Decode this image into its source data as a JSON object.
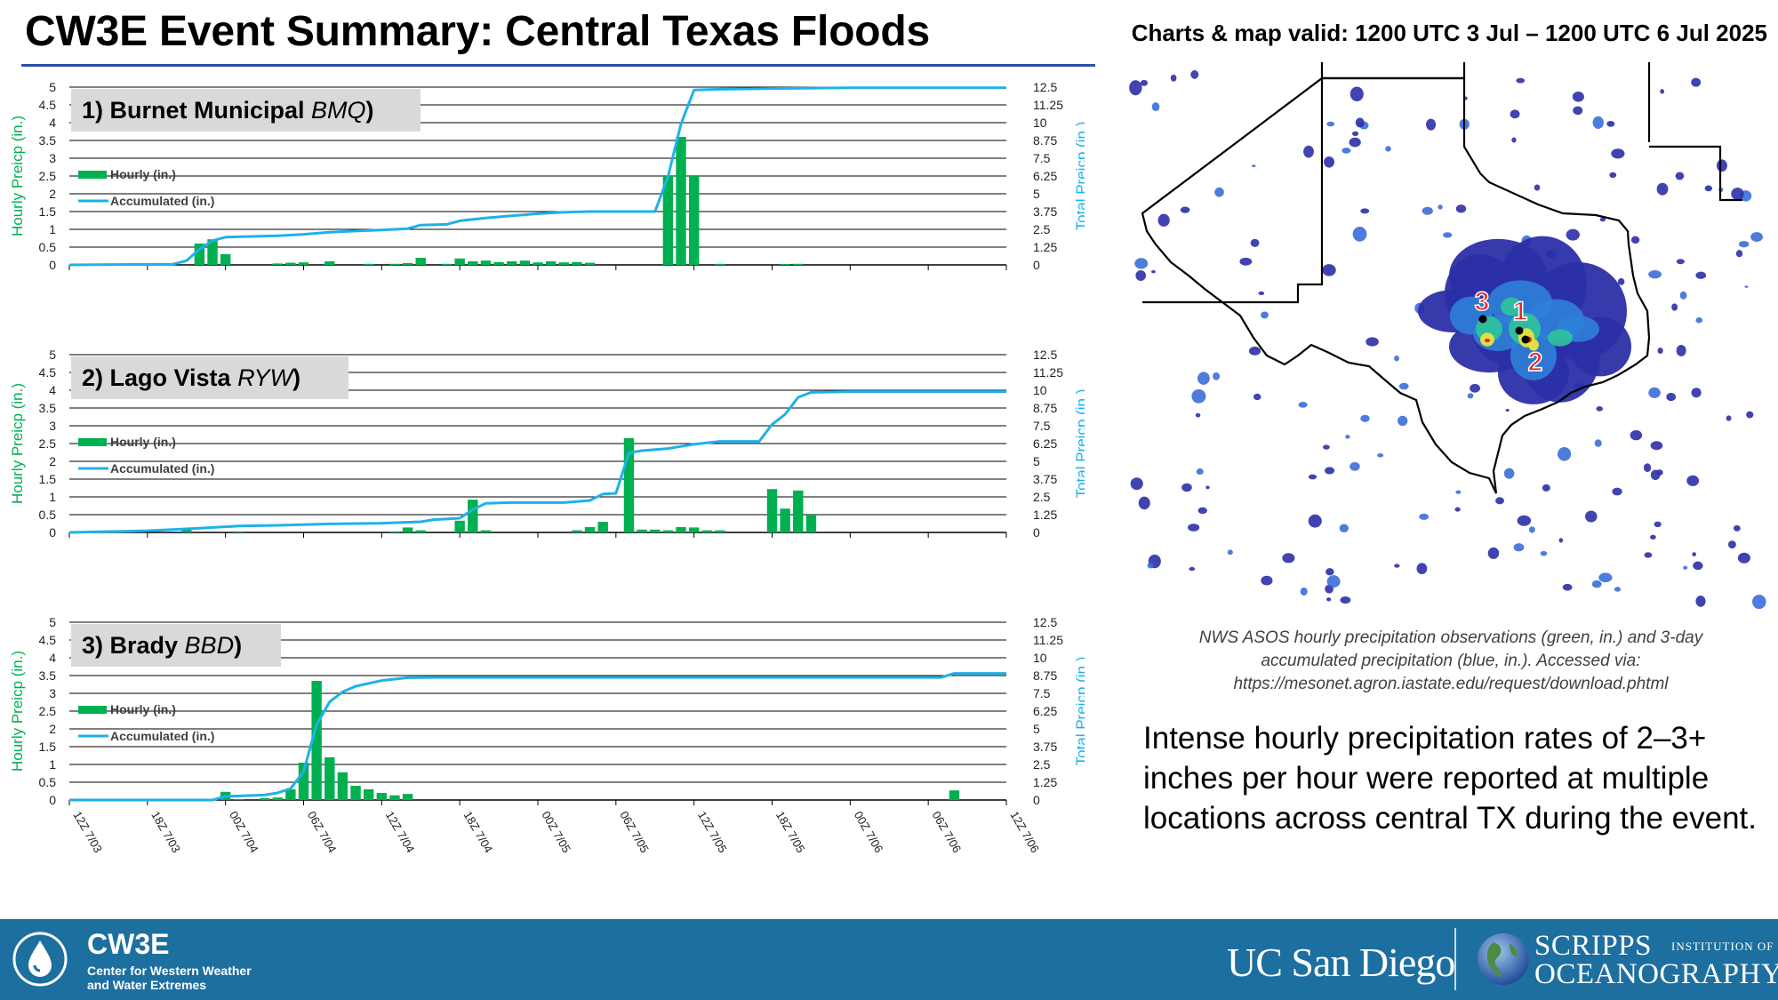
{
  "header": {
    "title": "CW3E Event Summary: Central Texas Floods",
    "valid": "Charts & map valid: 1200 UTC 3 Jul – 1200 UTC 6 Jul 2025"
  },
  "colors": {
    "hourly": "#00b050",
    "accumulated": "#1fb1e9",
    "title_rule": "#2b4fa8",
    "footer": "#1d6fa0",
    "marker_label": "#e3262b"
  },
  "chart_data": [
    {
      "type": "bar",
      "title": "1) Burnet Municipal ",
      "title_code": "BMQ",
      "title_suffix": ")",
      "x_tick_labels": [
        "12Z 7/03",
        "18Z 7/03",
        "00Z 7/04",
        "06Z 7/04",
        "12Z 7/04",
        "18Z 7/04",
        "00Z 7/05",
        "06Z 7/05",
        "12Z 7/05",
        "18Z 7/05",
        "00Z 7/06",
        "06Z 7/06",
        "12Z 7/06"
      ],
      "ylabel_left": "Hourly Preicp (in.)",
      "ylabel_right": "Total Preicp (in.)",
      "ylim_left": [
        0,
        5
      ],
      "ylim_right": [
        0,
        12.5
      ],
      "left_ticks": [
        "0",
        "0.5",
        "1",
        "1.5",
        "2",
        "2.5",
        "3",
        "3.5",
        "4",
        "4.5",
        "5"
      ],
      "right_ticks": [
        "0",
        "1.25",
        "2.5",
        "3.75",
        "5",
        "6.25",
        "7.5",
        "8.75",
        "10",
        "11.25",
        "12.5"
      ],
      "legend": {
        "hourly": "Hourly (in.)",
        "accumulated": "Accumulated (in.)"
      },
      "hourly": [
        {
          "h": 10,
          "v": 0.6
        },
        {
          "h": 11,
          "v": 0.72
        },
        {
          "h": 12,
          "v": 0.3
        },
        {
          "h": 16,
          "v": 0.04
        },
        {
          "h": 17,
          "v": 0.06
        },
        {
          "h": 18,
          "v": 0.07
        },
        {
          "h": 20,
          "v": 0.1
        },
        {
          "h": 23,
          "v": 0.03
        },
        {
          "h": 25,
          "v": 0.03
        },
        {
          "h": 26,
          "v": 0.05
        },
        {
          "h": 27,
          "v": 0.2
        },
        {
          "h": 29,
          "v": 0.03
        },
        {
          "h": 30,
          "v": 0.18
        },
        {
          "h": 31,
          "v": 0.1
        },
        {
          "h": 32,
          "v": 0.12
        },
        {
          "h": 33,
          "v": 0.08
        },
        {
          "h": 34,
          "v": 0.1
        },
        {
          "h": 35,
          "v": 0.12
        },
        {
          "h": 36,
          "v": 0.07
        },
        {
          "h": 37,
          "v": 0.1
        },
        {
          "h": 38,
          "v": 0.07
        },
        {
          "h": 39,
          "v": 0.08
        },
        {
          "h": 40,
          "v": 0.06
        },
        {
          "h": 46,
          "v": 2.5
        },
        {
          "h": 47,
          "v": 3.6
        },
        {
          "h": 48,
          "v": 2.5
        },
        {
          "h": 50,
          "v": 0.03
        },
        {
          "h": 55,
          "v": 0.02
        },
        {
          "h": 56,
          "v": 0.03
        }
      ],
      "accumulated": [
        [
          0,
          0
        ],
        [
          8,
          0.05
        ],
        [
          9,
          0.3
        ],
        [
          10,
          1.1
        ],
        [
          11,
          1.7
        ],
        [
          12,
          1.95
        ],
        [
          14,
          2.0
        ],
        [
          16,
          2.05
        ],
        [
          18,
          2.15
        ],
        [
          20,
          2.3
        ],
        [
          22,
          2.38
        ],
        [
          24,
          2.45
        ],
        [
          26,
          2.55
        ],
        [
          27,
          2.8
        ],
        [
          29,
          2.85
        ],
        [
          30,
          3.1
        ],
        [
          32,
          3.3
        ],
        [
          34,
          3.45
        ],
        [
          36,
          3.6
        ],
        [
          38,
          3.7
        ],
        [
          40,
          3.75
        ],
        [
          43,
          3.75
        ],
        [
          45,
          3.75
        ],
        [
          46,
          6.2
        ],
        [
          47,
          9.9
        ],
        [
          48,
          12.3
        ],
        [
          50,
          12.35
        ],
        [
          54,
          12.4
        ],
        [
          60,
          12.45
        ],
        [
          72,
          12.45
        ]
      ]
    },
    {
      "type": "bar",
      "title": "2) Lago Vista ",
      "title_code": "RYW",
      "title_suffix": ")",
      "x_tick_labels": [
        "12Z 7/03",
        "18Z 7/03",
        "00Z 7/04",
        "06Z 7/04",
        "12Z 7/04",
        "18Z 7/04",
        "00Z 7/05",
        "06Z 7/05",
        "12Z 7/05",
        "18Z 7/05",
        "00Z 7/06",
        "06Z 7/06",
        "12Z 7/06"
      ],
      "ylabel_left": "Hourly Preicp (in.)",
      "ylabel_right": "Total Preicp (in.)",
      "ylim_left": [
        0,
        5
      ],
      "ylim_right": [
        0,
        12.5
      ],
      "left_ticks": [
        "0",
        "0.5",
        "1",
        "1.5",
        "2",
        "2.5",
        "3",
        "3.5",
        "4",
        "4.5",
        "5"
      ],
      "right_ticks": [
        "0",
        "1.25",
        "2.5",
        "3.75",
        "5",
        "6.25",
        "7.5",
        "8.75",
        "10",
        "11.25",
        "12.5"
      ],
      "legend": {
        "hourly": "Hourly (in.)",
        "accumulated": "Accumulated (in.)"
      },
      "hourly": [
        {
          "h": 9,
          "v": 0.08
        },
        {
          "h": 13,
          "v": 0.03
        },
        {
          "h": 25,
          "v": 0.03
        },
        {
          "h": 26,
          "v": 0.14
        },
        {
          "h": 27,
          "v": 0.06
        },
        {
          "h": 30,
          "v": 0.33
        },
        {
          "h": 31,
          "v": 0.92
        },
        {
          "h": 32,
          "v": 0.06
        },
        {
          "h": 39,
          "v": 0.06
        },
        {
          "h": 40,
          "v": 0.15
        },
        {
          "h": 41,
          "v": 0.3
        },
        {
          "h": 43,
          "v": 2.65
        },
        {
          "h": 44,
          "v": 0.08
        },
        {
          "h": 45,
          "v": 0.08
        },
        {
          "h": 46,
          "v": 0.06
        },
        {
          "h": 47,
          "v": 0.15
        },
        {
          "h": 48,
          "v": 0.14
        },
        {
          "h": 49,
          "v": 0.06
        },
        {
          "h": 50,
          "v": 0.06
        },
        {
          "h": 54,
          "v": 1.22
        },
        {
          "h": 55,
          "v": 0.67
        },
        {
          "h": 56,
          "v": 1.18
        },
        {
          "h": 57,
          "v": 0.5
        }
      ],
      "accumulated": [
        [
          0,
          0
        ],
        [
          6,
          0.12
        ],
        [
          10,
          0.3
        ],
        [
          13,
          0.45
        ],
        [
          16,
          0.5
        ],
        [
          20,
          0.6
        ],
        [
          24,
          0.65
        ],
        [
          27,
          0.75
        ],
        [
          28,
          0.9
        ],
        [
          30,
          1.0
        ],
        [
          31,
          1.6
        ],
        [
          32,
          2.05
        ],
        [
          34,
          2.1
        ],
        [
          38,
          2.1
        ],
        [
          40,
          2.25
        ],
        [
          41,
          2.7
        ],
        [
          42,
          2.75
        ],
        [
          43,
          5.6
        ],
        [
          44,
          5.75
        ],
        [
          46,
          5.9
        ],
        [
          48,
          6.2
        ],
        [
          50,
          6.4
        ],
        [
          53,
          6.4
        ],
        [
          54,
          7.6
        ],
        [
          55,
          8.3
        ],
        [
          56,
          9.5
        ],
        [
          57,
          9.85
        ],
        [
          60,
          9.9
        ],
        [
          72,
          9.9
        ]
      ]
    },
    {
      "type": "bar",
      "title": "3) Brady ",
      "title_code": "BBD",
      "title_suffix": ")",
      "x_tick_labels": [
        "12Z 7/03",
        "18Z 7/03",
        "00Z 7/04",
        "06Z 7/04",
        "12Z 7/04",
        "18Z 7/04",
        "00Z 7/05",
        "06Z 7/05",
        "12Z 7/05",
        "18Z 7/05",
        "00Z 7/06",
        "06Z 7/06",
        "12Z 7/06"
      ],
      "ylabel_left": "Hourly Preicp (in.)",
      "ylabel_right": "Total Preicp (in.)",
      "ylim_left": [
        0,
        5
      ],
      "ylim_right": [
        0,
        12.5
      ],
      "left_ticks": [
        "0",
        "0.5",
        "1",
        "1.5",
        "2",
        "2.5",
        "3",
        "3.5",
        "4",
        "4.5",
        "5"
      ],
      "right_ticks": [
        "0",
        "1.25",
        "2.5",
        "3.75",
        "5",
        "6.25",
        "7.5",
        "8.75",
        "10",
        "11.25",
        "12.5"
      ],
      "legend": {
        "hourly": "Hourly (in.)",
        "accumulated": "Accumulated (in.)"
      },
      "hourly": [
        {
          "h": 12,
          "v": 0.23
        },
        {
          "h": 13,
          "v": 0.02
        },
        {
          "h": 15,
          "v": 0.05
        },
        {
          "h": 16,
          "v": 0.07
        },
        {
          "h": 17,
          "v": 0.3
        },
        {
          "h": 18,
          "v": 1.05
        },
        {
          "h": 19,
          "v": 3.35
        },
        {
          "h": 20,
          "v": 1.2
        },
        {
          "h": 21,
          "v": 0.78
        },
        {
          "h": 22,
          "v": 0.4
        },
        {
          "h": 23,
          "v": 0.3
        },
        {
          "h": 24,
          "v": 0.2
        },
        {
          "h": 25,
          "v": 0.13
        },
        {
          "h": 26,
          "v": 0.17
        },
        {
          "h": 68,
          "v": 0.27
        }
      ],
      "accumulated": [
        [
          0,
          0
        ],
        [
          11,
          0
        ],
        [
          12,
          0.25
        ],
        [
          15,
          0.35
        ],
        [
          16,
          0.5
        ],
        [
          17,
          0.8
        ],
        [
          18,
          2.0
        ],
        [
          19,
          5.3
        ],
        [
          20,
          6.9
        ],
        [
          21,
          7.6
        ],
        [
          22,
          8.0
        ],
        [
          23,
          8.2
        ],
        [
          24,
          8.4
        ],
        [
          25,
          8.5
        ],
        [
          26,
          8.6
        ],
        [
          28,
          8.62
        ],
        [
          40,
          8.62
        ],
        [
          60,
          8.62
        ],
        [
          67,
          8.62
        ],
        [
          68,
          8.9
        ],
        [
          72,
          8.9
        ]
      ]
    }
  ],
  "map": {
    "markers": [
      {
        "label": "3"
      },
      {
        "label": "1"
      },
      {
        "label": "2"
      }
    ]
  },
  "caption": {
    "line1": "NWS ASOS hourly precipitation observations (green, in.) and 3-day",
    "line2": "accumulated precipitation (blue, in.). Accessed via:",
    "line3": "https://mesonet.agron.iastate.edu/request/download.phtml"
  },
  "summary": "Intense hourly precipitation rates of 2–3+ inches per hour were reported at multiple locations across central TX during the event.",
  "footer": {
    "cw3e_name": "CW3E",
    "cw3e_sub": "Center for Western Weather and Water Extremes",
    "ucsd": "UC San Diego",
    "scripps": "SCRIPPS",
    "scripps_inst": "INSTITUTION OF",
    "scripps_ocean": "OCEANOGRAPHY"
  }
}
